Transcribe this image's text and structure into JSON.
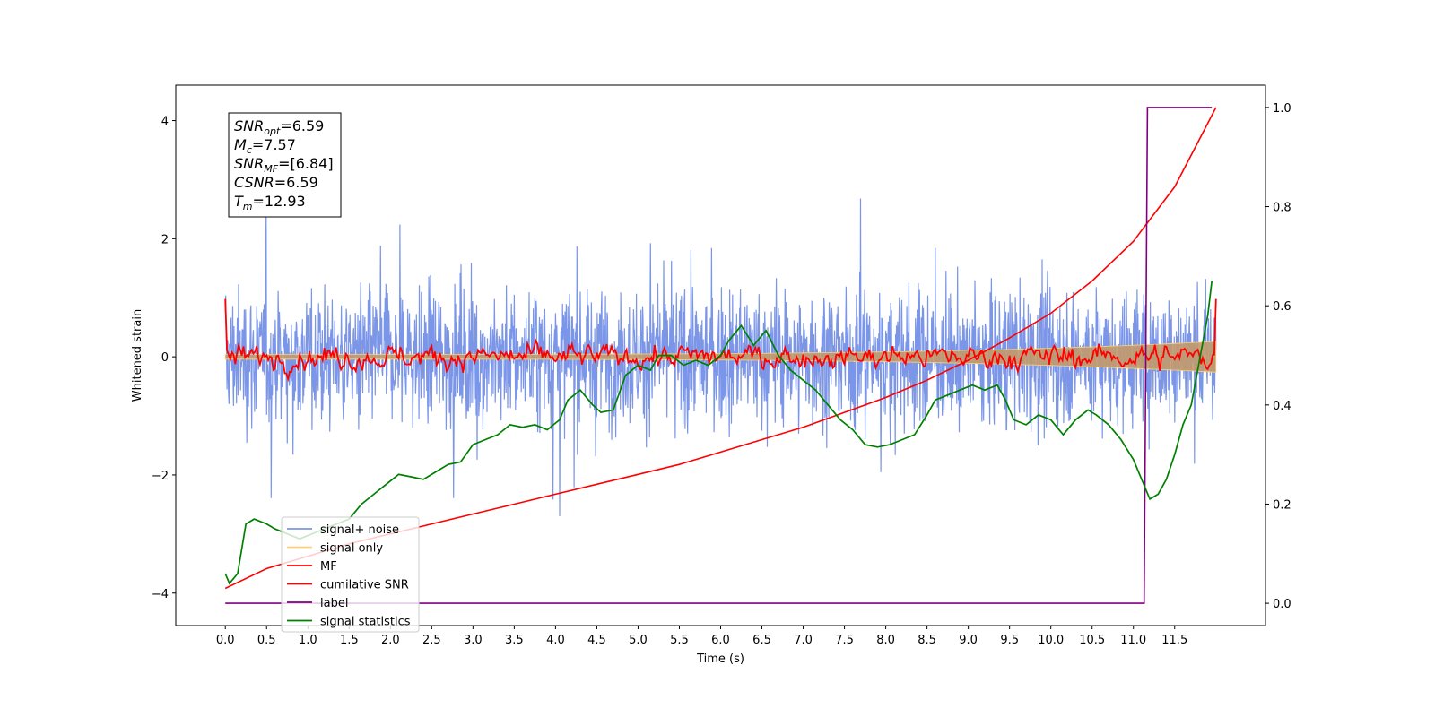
{
  "chart_data": {
    "type": "line",
    "xlabel": "Time (s)",
    "ylabel": "Whitened strain",
    "xlim": [
      -0.6,
      12.6
    ],
    "ylim": [
      -4.55,
      4.6
    ],
    "y2lim": [
      -0.045,
      1.045
    ],
    "x_ticks": [
      "0.0",
      "0.5",
      "1.0",
      "1.5",
      "2.0",
      "2.5",
      "3.0",
      "3.5",
      "4.0",
      "4.5",
      "5.0",
      "5.5",
      "6.0",
      "6.5",
      "7.0",
      "7.5",
      "8.0",
      "8.5",
      "9.0",
      "9.5",
      "10.0",
      "10.5",
      "11.0",
      "11.5"
    ],
    "y_ticks": [
      "4",
      "2",
      "0",
      "−2",
      "−4"
    ],
    "y2_ticks": [
      "1.0",
      "0.8",
      "0.6",
      "0.4",
      "0.2",
      "0.0"
    ],
    "grid": false,
    "legend_position": "lower-left",
    "colors": {
      "noise": "#7b96e8",
      "signal": "#ffd278",
      "mf": "#ff0000",
      "csnr": "#ff0000",
      "label": "#800080",
      "stats": "#008000",
      "band": "#c39a6b"
    },
    "annotation": {
      "snr_opt": {
        "base": "SNR",
        "sub": "opt",
        "value": "=6.59"
      },
      "mc": {
        "base": "M",
        "sub": "c",
        "value": "=7.57"
      },
      "snr_mf": {
        "base": "SNR",
        "sub": "MF",
        "value": "=[6.84]"
      },
      "csnr": {
        "base": "CSNR",
        "sub": "",
        "value": "=6.59"
      },
      "tm": {
        "base": "T",
        "sub": "m",
        "value": "=12.93"
      }
    },
    "series": [
      {
        "name": "signal+ noise",
        "axis": "left",
        "note_points": "noise-like, amplitude about ±2.5"
      },
      {
        "name": "signal only",
        "axis": "left"
      },
      {
        "name": "MF",
        "axis": "left",
        "start": 0.98,
        "end": 0.98
      },
      {
        "name": "cumilative SNR",
        "axis": "right",
        "x": [
          0,
          0.5,
          1,
          1.5,
          2,
          2.5,
          3,
          3.5,
          4,
          4.5,
          5,
          5.5,
          6,
          6.5,
          7,
          7.5,
          8,
          8.5,
          9,
          9.5,
          10,
          10.5,
          11,
          11.5,
          12
        ],
        "y": [
          0.03,
          0.07,
          0.095,
          0.12,
          0.14,
          0.16,
          0.18,
          0.2,
          0.22,
          0.24,
          0.26,
          0.28,
          0.305,
          0.33,
          0.355,
          0.385,
          0.415,
          0.45,
          0.49,
          0.535,
          0.585,
          0.65,
          0.73,
          0.84,
          1.0
        ]
      },
      {
        "name": "label",
        "axis": "right",
        "x": [
          0,
          11.13,
          11.17,
          11.95
        ],
        "y": [
          0.0,
          0.0,
          1.0,
          1.0
        ]
      },
      {
        "name": "signal statistics",
        "axis": "right",
        "x": [
          0,
          0.05,
          0.15,
          0.25,
          0.35,
          0.5,
          0.6,
          0.75,
          0.9,
          1.05,
          1.2,
          1.35,
          1.5,
          1.65,
          1.8,
          1.95,
          2.1,
          2.25,
          2.4,
          2.55,
          2.7,
          2.85,
          3.0,
          3.15,
          3.3,
          3.45,
          3.6,
          3.75,
          3.9,
          4.05,
          4.15,
          4.3,
          4.45,
          4.55,
          4.7,
          4.85,
          5.0,
          5.15,
          5.25,
          5.4,
          5.55,
          5.7,
          5.85,
          6.0,
          6.1,
          6.25,
          6.4,
          6.55,
          6.7,
          6.85,
          7.0,
          7.15,
          7.3,
          7.45,
          7.6,
          7.75,
          7.9,
          8.05,
          8.2,
          8.35,
          8.5,
          8.6,
          8.75,
          8.9,
          9.05,
          9.2,
          9.35,
          9.45,
          9.55,
          9.7,
          9.85,
          10.0,
          10.15,
          10.3,
          10.45,
          10.55,
          10.7,
          10.85,
          11.0,
          11.1,
          11.2,
          11.3,
          11.4,
          11.5,
          11.6,
          11.7,
          11.8,
          11.9,
          11.95
        ],
        "y": [
          0.06,
          0.04,
          0.06,
          0.16,
          0.17,
          0.16,
          0.15,
          0.14,
          0.13,
          0.14,
          0.15,
          0.16,
          0.17,
          0.2,
          0.22,
          0.24,
          0.26,
          0.255,
          0.25,
          0.265,
          0.28,
          0.285,
          0.32,
          0.33,
          0.34,
          0.36,
          0.355,
          0.36,
          0.35,
          0.37,
          0.41,
          0.43,
          0.4,
          0.385,
          0.39,
          0.46,
          0.48,
          0.47,
          0.5,
          0.5,
          0.48,
          0.49,
          0.48,
          0.5,
          0.53,
          0.56,
          0.52,
          0.55,
          0.5,
          0.47,
          0.45,
          0.43,
          0.4,
          0.37,
          0.35,
          0.32,
          0.315,
          0.32,
          0.33,
          0.34,
          0.38,
          0.41,
          0.42,
          0.43,
          0.44,
          0.43,
          0.44,
          0.41,
          0.37,
          0.36,
          0.38,
          0.37,
          0.34,
          0.37,
          0.39,
          0.38,
          0.36,
          0.33,
          0.29,
          0.25,
          0.21,
          0.22,
          0.25,
          0.3,
          0.36,
          0.4,
          0.49,
          0.58,
          0.65
        ]
      }
    ]
  }
}
